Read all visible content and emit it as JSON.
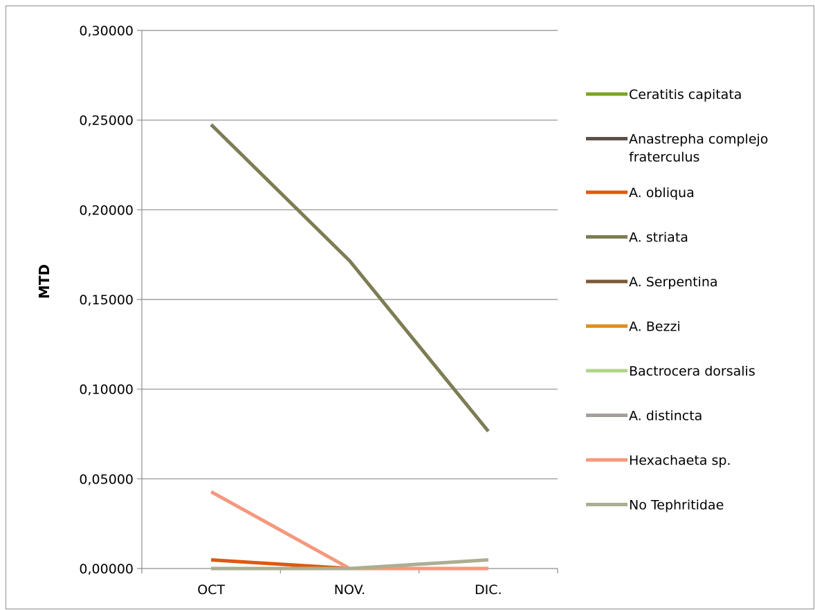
{
  "chart_data": {
    "type": "line",
    "title": "",
    "xlabel": "",
    "ylabel": "MTD",
    "categories": [
      "OCT",
      "NOV.",
      "DIC."
    ],
    "ylim": [
      0,
      0.3
    ],
    "yticks": [
      0,
      0.05,
      0.1,
      0.15,
      0.2,
      0.25,
      0.3
    ],
    "ytick_labels": [
      "0,00000",
      "0,05000",
      "0,10000",
      "0,15000",
      "0,20000",
      "0,25000",
      "0,30000"
    ],
    "grid": true,
    "legend_position": "right",
    "series": [
      {
        "name": "Ceratitis capitata",
        "color": "#7aa420",
        "values": [
          0,
          0,
          0
        ]
      },
      {
        "name": "Anastrepha complejo fraterculus",
        "color": "#5c5047",
        "values": [
          0,
          0,
          0
        ]
      },
      {
        "name": "A. obliqua",
        "color": "#e0580e",
        "values": [
          0.0048,
          0,
          0
        ]
      },
      {
        "name": "A. striata",
        "color": "#7d7d55",
        "values": [
          0.2475,
          0.1715,
          0.0765
        ]
      },
      {
        "name": "A. Serpentina",
        "color": "#7a5836",
        "values": [
          0,
          0,
          0
        ]
      },
      {
        "name": "A. Bezzi",
        "color": "#e0901f",
        "values": [
          0,
          0,
          0
        ]
      },
      {
        "name": "Bactrocera dorsalis",
        "color": "#b2d48a",
        "values": [
          0,
          0,
          0
        ]
      },
      {
        "name": "A. distincta",
        "color": "#a39e98",
        "values": [
          0,
          0,
          0
        ]
      },
      {
        "name": "Hexachaeta sp.",
        "color": "#f5987e",
        "values": [
          0.0428,
          0,
          0
        ]
      },
      {
        "name": "No Tephritidae",
        "color": "#aaaf92",
        "values": [
          0,
          0,
          0.0048
        ]
      }
    ]
  }
}
